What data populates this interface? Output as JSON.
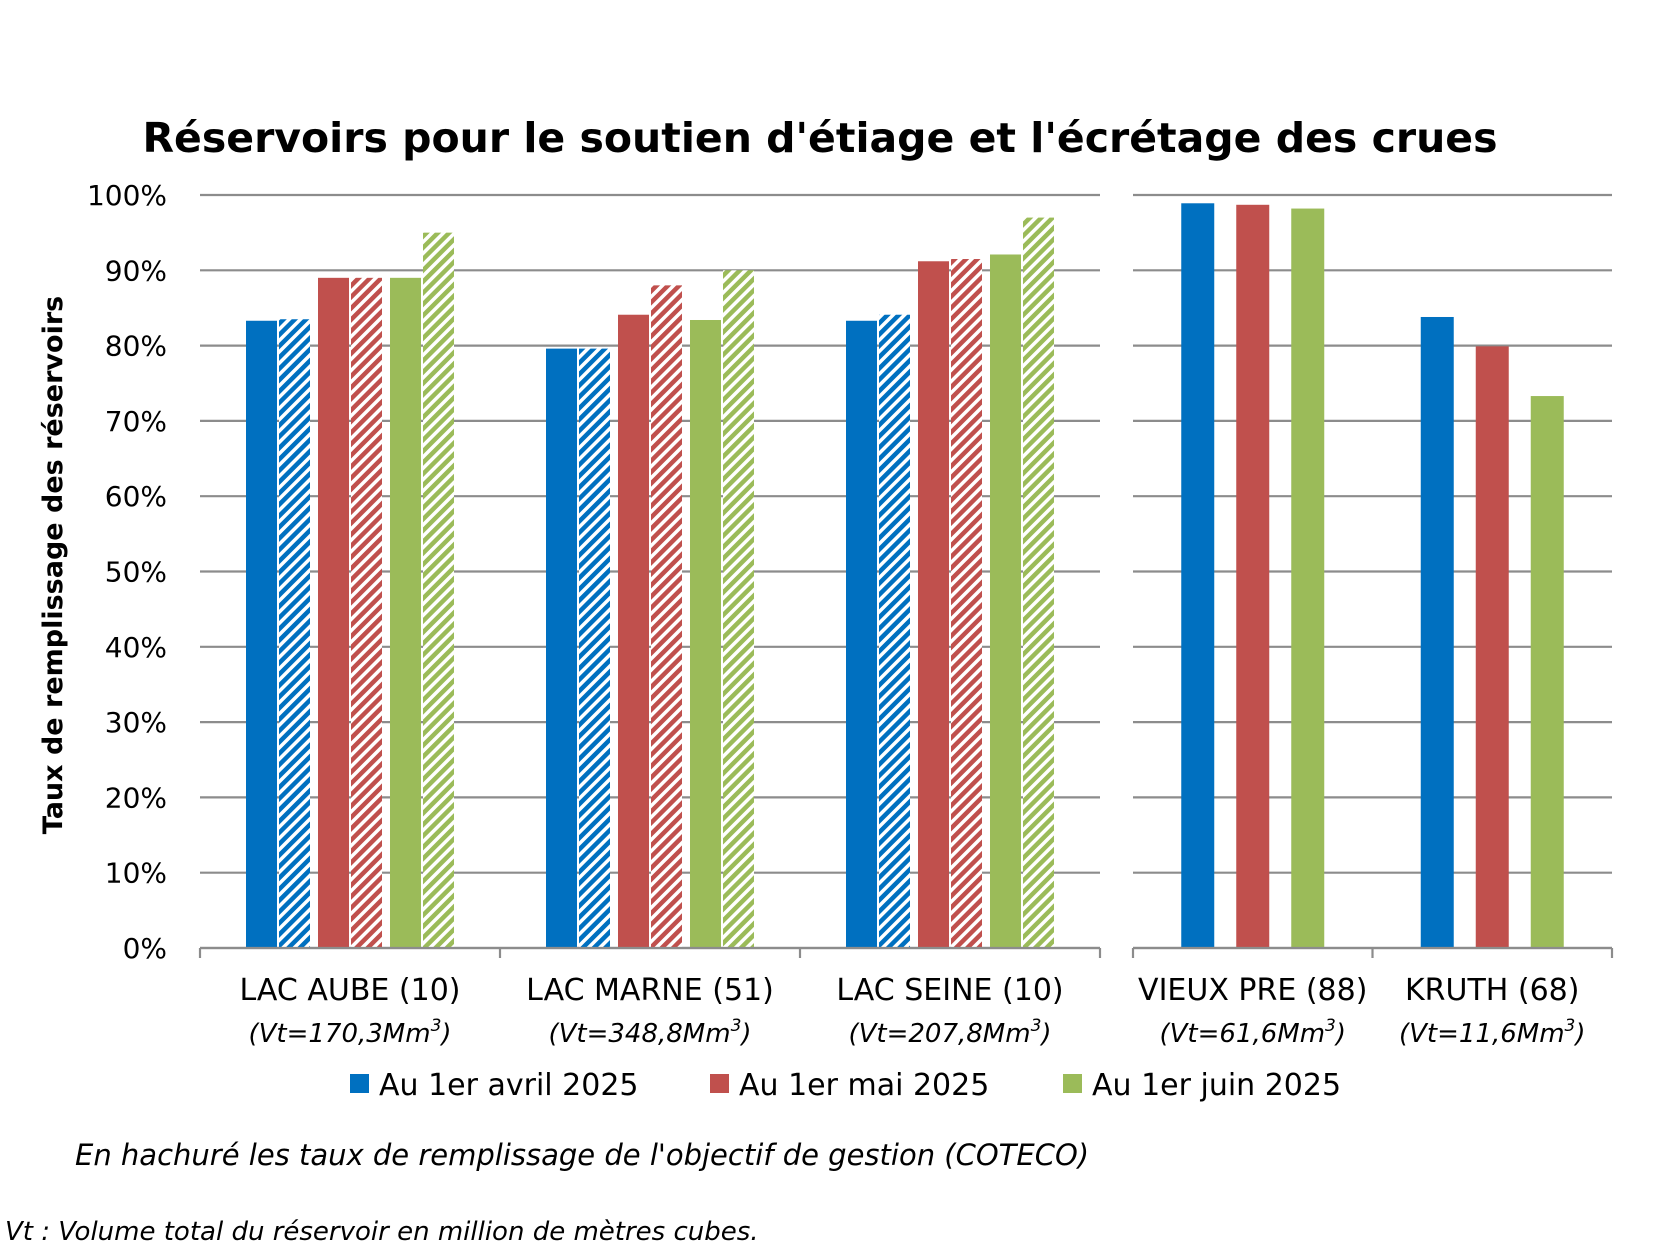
{
  "chart_data": {
    "type": "bar",
    "title": "Réservoirs pour le soutien d'étiage et l'écrétage des crues",
    "ylabel": "Taux de remplissage des réservoirs",
    "xlabel": "",
    "ylim": [
      0,
      100
    ],
    "y_ticks": [
      "0%",
      "10%",
      "20%",
      "30%",
      "40%",
      "50%",
      "60%",
      "70%",
      "80%",
      "90%",
      "100%"
    ],
    "grid": true,
    "legend_position": "bottom",
    "series": [
      {
        "name": "Au 1er avril 2025",
        "color": "#0070C0"
      },
      {
        "name": "Au 1er mai 2025",
        "color": "#C0504D"
      },
      {
        "name": "Au 1er juin 2025",
        "color": "#9BBB59"
      }
    ],
    "panels": [
      {
        "categories": [
          {
            "label": "LAC AUBE (10)",
            "vt_prefix": "(Vt=170,3Mm",
            "vt_suffix": ")",
            "values": [
              83.3,
              89.0,
              89.0
            ],
            "objective": [
              83.5,
              89.0,
              95.0
            ]
          },
          {
            "label": "LAC MARNE (51)",
            "vt_prefix": "(Vt=348,8Mm",
            "vt_suffix": ")",
            "values": [
              79.6,
              84.1,
              83.4
            ],
            "objective": [
              79.6,
              88.0,
              90.0
            ]
          },
          {
            "label": "LAC SEINE (10)",
            "vt_prefix": "(Vt=207,8Mm",
            "vt_suffix": ")",
            "values": [
              83.3,
              91.2,
              92.1
            ],
            "objective": [
              84.1,
              91.5,
              97.0
            ]
          }
        ]
      },
      {
        "categories": [
          {
            "label": "VIEUX PRE (88)",
            "vt_prefix": "(Vt=61,6Mm",
            "vt_suffix": ")",
            "values": [
              98.9,
              98.7,
              98.2
            ],
            "objective": null
          },
          {
            "label": "KRUTH (68)",
            "vt_prefix": "(Vt=11,6Mm",
            "vt_suffix": ")",
            "values": [
              83.8,
              79.9,
              73.3
            ],
            "objective": null
          }
        ]
      }
    ],
    "vt_superscript": "3",
    "notes": [
      "En hachuré les taux de remplissage de l'objectif de gestion (COTECO)",
      "Vt : Volume total du réservoir en million de mètres cubes."
    ]
  }
}
